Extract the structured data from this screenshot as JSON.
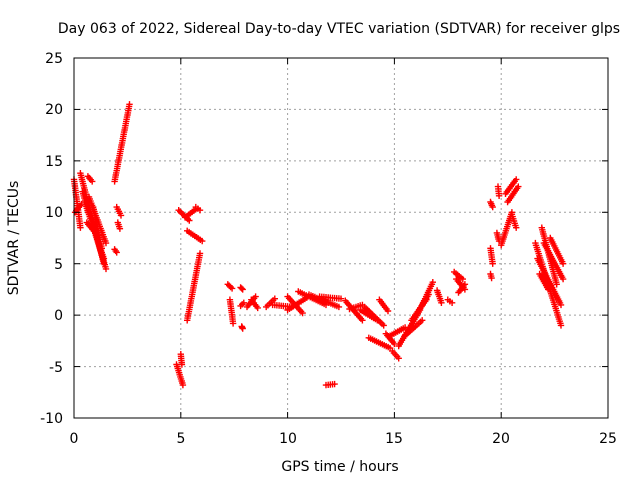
{
  "chart_data": {
    "type": "scatter",
    "title": "Day 063 of 2022, Sidereal Day-to-day VTEC variation (SDTVAR) for receiver glps",
    "xlabel": "GPS time / hours",
    "ylabel": "SDTVAR / TECUs",
    "xlim": [
      0,
      25
    ],
    "ylim": [
      -10,
      25
    ],
    "xticks": [
      "0",
      "5",
      "10",
      "15",
      "20",
      "25"
    ],
    "yticks": [
      "-10",
      "-5",
      "0",
      "5",
      "10",
      "15",
      "20",
      "25"
    ],
    "grid": true,
    "marker": "+",
    "color": "#ff0000",
    "segments": [
      {
        "x0": 0.0,
        "x1": 0.3,
        "y0": 13.2,
        "y1": 8.5
      },
      {
        "x0": 0.05,
        "x1": 0.35,
        "y0": 10.0,
        "y1": 10.8
      },
      {
        "x0": 0.3,
        "x1": 1.4,
        "y0": 13.8,
        "y1": 5.0
      },
      {
        "x0": 0.4,
        "x1": 1.5,
        "y0": 12.0,
        "y1": 4.5
      },
      {
        "x0": 0.5,
        "x1": 1.4,
        "y0": 11.0,
        "y1": 5.5
      },
      {
        "x0": 0.7,
        "x1": 1.5,
        "y0": 11.5,
        "y1": 7.0
      },
      {
        "x0": 0.9,
        "x1": 1.3,
        "y0": 10.5,
        "y1": 6.5
      },
      {
        "x0": 0.6,
        "x1": 1.0,
        "y0": 9.0,
        "y1": 8.0
      },
      {
        "x0": 0.65,
        "x1": 0.85,
        "y0": 13.5,
        "y1": 13.0
      },
      {
        "x0": 1.9,
        "x1": 2.0,
        "y0": 6.4,
        "y1": 6.1
      },
      {
        "x0": 2.0,
        "x1": 2.2,
        "y0": 10.5,
        "y1": 9.7
      },
      {
        "x0": 2.05,
        "x1": 2.15,
        "y0": 9.0,
        "y1": 8.4
      },
      {
        "x0": 1.9,
        "x1": 2.6,
        "y0": 13.0,
        "y1": 20.5
      },
      {
        "x0": 4.8,
        "x1": 5.1,
        "y0": -4.8,
        "y1": -6.8
      },
      {
        "x0": 5.0,
        "x1": 5.05,
        "y0": -3.8,
        "y1": -4.8
      },
      {
        "x0": 4.9,
        "x1": 5.4,
        "y0": 10.2,
        "y1": 9.2
      },
      {
        "x0": 5.2,
        "x1": 5.7,
        "y0": 9.5,
        "y1": 10.3
      },
      {
        "x0": 5.7,
        "x1": 5.9,
        "y0": 10.5,
        "y1": 10.2
      },
      {
        "x0": 5.3,
        "x1": 6.0,
        "y0": 8.2,
        "y1": 7.2
      },
      {
        "x0": 5.3,
        "x1": 5.9,
        "y0": -0.5,
        "y1": 6.0
      },
      {
        "x0": 7.2,
        "x1": 7.4,
        "y0": 3.0,
        "y1": 2.6
      },
      {
        "x0": 7.3,
        "x1": 7.45,
        "y0": 1.5,
        "y1": -0.8
      },
      {
        "x0": 7.8,
        "x1": 7.9,
        "y0": 2.7,
        "y1": 2.5
      },
      {
        "x0": 7.8,
        "x1": 7.95,
        "y0": 0.9,
        "y1": 1.2
      },
      {
        "x0": 7.85,
        "x1": 7.9,
        "y0": -1.1,
        "y1": -1.3
      },
      {
        "x0": 8.1,
        "x1": 8.5,
        "y0": 0.8,
        "y1": 1.8
      },
      {
        "x0": 8.3,
        "x1": 8.6,
        "y0": 1.5,
        "y1": 0.7
      },
      {
        "x0": 9.0,
        "x1": 9.4,
        "y0": 0.8,
        "y1": 1.6
      },
      {
        "x0": 9.3,
        "x1": 10.2,
        "y0": 1.0,
        "y1": 0.8
      },
      {
        "x0": 10.0,
        "x1": 10.7,
        "y0": 1.8,
        "y1": 0.2
      },
      {
        "x0": 10.0,
        "x1": 10.9,
        "y0": 0.5,
        "y1": 1.7
      },
      {
        "x0": 10.5,
        "x1": 11.8,
        "y0": 2.3,
        "y1": 1.0
      },
      {
        "x0": 11.0,
        "x1": 12.4,
        "y0": 2.0,
        "y1": 0.8
      },
      {
        "x0": 11.5,
        "x1": 12.5,
        "y0": 1.8,
        "y1": 1.6
      },
      {
        "x0": 11.8,
        "x1": 12.2,
        "y0": -6.8,
        "y1": -6.7
      },
      {
        "x0": 12.7,
        "x1": 13.5,
        "y0": 1.4,
        "y1": -0.5
      },
      {
        "x0": 12.9,
        "x1": 13.5,
        "y0": 0.6,
        "y1": 1.0
      },
      {
        "x0": 13.4,
        "x1": 14.2,
        "y0": 0.5,
        "y1": -0.5
      },
      {
        "x0": 13.6,
        "x1": 14.5,
        "y0": 0.8,
        "y1": -1.0
      },
      {
        "x0": 14.3,
        "x1": 14.7,
        "y0": 1.5,
        "y1": 0.4
      },
      {
        "x0": 13.8,
        "x1": 14.8,
        "y0": -2.2,
        "y1": -3.2
      },
      {
        "x0": 14.6,
        "x1": 15.0,
        "y0": -1.8,
        "y1": -2.8
      },
      {
        "x0": 14.8,
        "x1": 15.5,
        "y0": -2.0,
        "y1": -1.2
      },
      {
        "x0": 14.9,
        "x1": 15.2,
        "y0": -3.5,
        "y1": -4.2
      },
      {
        "x0": 15.2,
        "x1": 16.2,
        "y0": -3.0,
        "y1": 0.5
      },
      {
        "x0": 15.5,
        "x1": 16.3,
        "y0": -2.0,
        "y1": -0.5
      },
      {
        "x0": 15.8,
        "x1": 16.5,
        "y0": -0.5,
        "y1": 1.5
      },
      {
        "x0": 16.0,
        "x1": 16.6,
        "y0": 0.0,
        "y1": 2.0
      },
      {
        "x0": 16.3,
        "x1": 16.8,
        "y0": 1.0,
        "y1": 3.2
      },
      {
        "x0": 17.0,
        "x1": 17.2,
        "y0": 2.4,
        "y1": 1.2
      },
      {
        "x0": 17.5,
        "x1": 17.7,
        "y0": 1.5,
        "y1": 1.2
      },
      {
        "x0": 17.8,
        "x1": 18.2,
        "y0": 4.2,
        "y1": 3.5
      },
      {
        "x0": 17.9,
        "x1": 18.3,
        "y0": 3.5,
        "y1": 2.5
      },
      {
        "x0": 18.0,
        "x1": 18.3,
        "y0": 2.2,
        "y1": 3.0
      },
      {
        "x0": 19.5,
        "x1": 19.6,
        "y0": 11.0,
        "y1": 10.5
      },
      {
        "x0": 19.5,
        "x1": 19.6,
        "y0": 6.5,
        "y1": 5.0
      },
      {
        "x0": 19.5,
        "x1": 19.55,
        "y0": 4.0,
        "y1": 3.6
      },
      {
        "x0": 19.8,
        "x1": 19.9,
        "y0": 8.0,
        "y1": 7.2
      },
      {
        "x0": 19.85,
        "x1": 19.9,
        "y0": 12.5,
        "y1": 11.6
      },
      {
        "x0": 20.0,
        "x1": 20.5,
        "y0": 6.8,
        "y1": 10.0
      },
      {
        "x0": 20.2,
        "x1": 20.7,
        "y0": 11.8,
        "y1": 13.2
      },
      {
        "x0": 20.3,
        "x1": 20.8,
        "y0": 11.0,
        "y1": 12.5
      },
      {
        "x0": 20.5,
        "x1": 20.7,
        "y0": 9.8,
        "y1": 8.5
      },
      {
        "x0": 21.6,
        "x1": 22.8,
        "y0": 7.0,
        "y1": -1.0
      },
      {
        "x0": 21.7,
        "x1": 22.8,
        "y0": 5.5,
        "y1": 1.0
      },
      {
        "x0": 21.9,
        "x1": 22.6,
        "y0": 8.5,
        "y1": 3.0
      },
      {
        "x0": 22.0,
        "x1": 22.9,
        "y0": 7.0,
        "y1": 3.5
      },
      {
        "x0": 22.3,
        "x1": 22.9,
        "y0": 7.5,
        "y1": 5.0
      },
      {
        "x0": 21.8,
        "x1": 22.2,
        "y0": 4.0,
        "y1": 2.5
      }
    ]
  }
}
